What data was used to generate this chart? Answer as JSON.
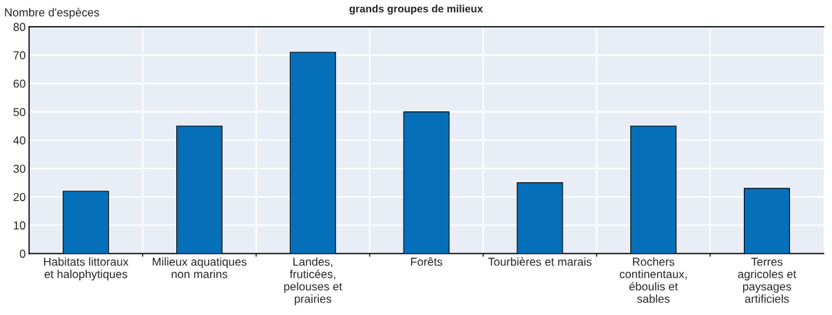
{
  "chart_data": {
    "type": "bar",
    "title": "grands groupes de milieux",
    "ylabel": "Nombre d'espèces",
    "categories": [
      "Habitats littoraux\net halophytiques",
      "Milieux aquatiques\nnon marins",
      "Landes,\nfruticées,\npelouses et\nprairies",
      "Forêts",
      "Tourbières et marais",
      "Rochers\ncontinentaux,\néboulis et\nsables",
      "Terres\nagricoles et\npaysages\nartificiels"
    ],
    "values": [
      22,
      45,
      71,
      50,
      25,
      45,
      23
    ],
    "color": "#066fba",
    "ylim": [
      0,
      80
    ],
    "yticks": [
      0,
      10,
      20,
      30,
      40,
      50,
      60,
      70,
      80
    ],
    "grid": true
  }
}
